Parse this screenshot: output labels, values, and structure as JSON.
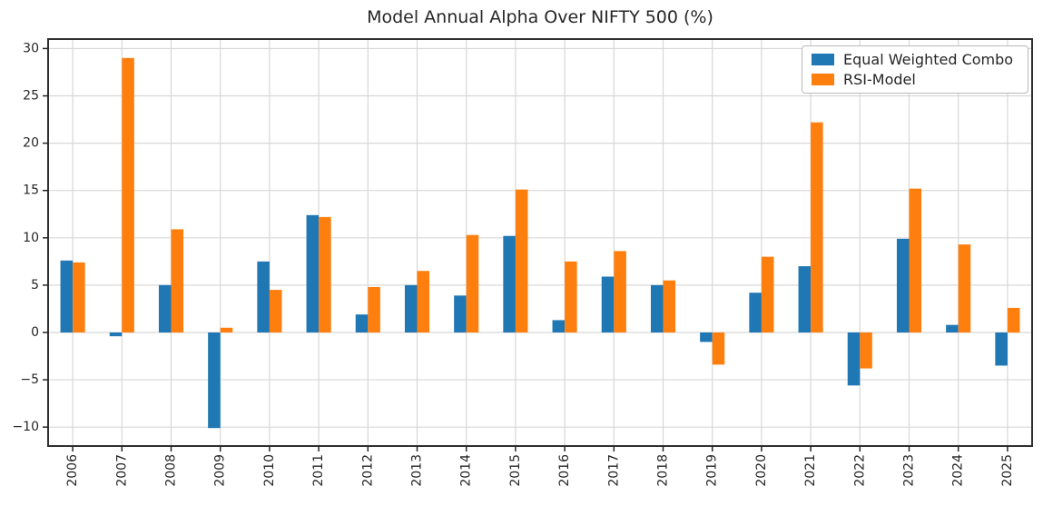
{
  "figure": {
    "title": "Model Annual Alpha Over NIFTY 500 (%)"
  },
  "chart_data": {
    "type": "bar",
    "title": "Model Annual Alpha Over NIFTY 500 (%)",
    "xlabel": "",
    "ylabel": "",
    "categories": [
      "2006",
      "2007",
      "2008",
      "2009",
      "2010",
      "2011",
      "2012",
      "2013",
      "2014",
      "2015",
      "2016",
      "2017",
      "2018",
      "2019",
      "2020",
      "2021",
      "2022",
      "2023",
      "2024",
      "2025"
    ],
    "series": [
      {
        "name": "Equal Weighted Combo",
        "color": "#1f77b4",
        "values": [
          7.6,
          -0.4,
          5.0,
          -10.1,
          7.5,
          12.4,
          1.9,
          5.0,
          3.9,
          10.2,
          1.3,
          5.9,
          5.0,
          -1.0,
          4.2,
          7.0,
          -5.6,
          9.9,
          0.8,
          -3.5
        ]
      },
      {
        "name": "RSI-Model",
        "color": "#ff7f0e",
        "values": [
          7.4,
          29.0,
          10.9,
          0.5,
          4.5,
          12.2,
          4.8,
          6.5,
          10.3,
          15.1,
          7.5,
          8.6,
          5.5,
          -3.4,
          8.0,
          22.2,
          -3.8,
          15.2,
          9.3,
          2.6
        ]
      }
    ],
    "ylim": [
      -12,
      31
    ],
    "yticks": [
      -10,
      -5,
      0,
      5,
      10,
      15,
      20,
      25,
      30
    ],
    "grid": true,
    "legend_position": "upper right",
    "colors": {
      "grid": "#d7d7d7",
      "spine": "#2f2f2f",
      "tick": "#262626",
      "text": "#262626",
      "background": "#ffffff"
    }
  }
}
